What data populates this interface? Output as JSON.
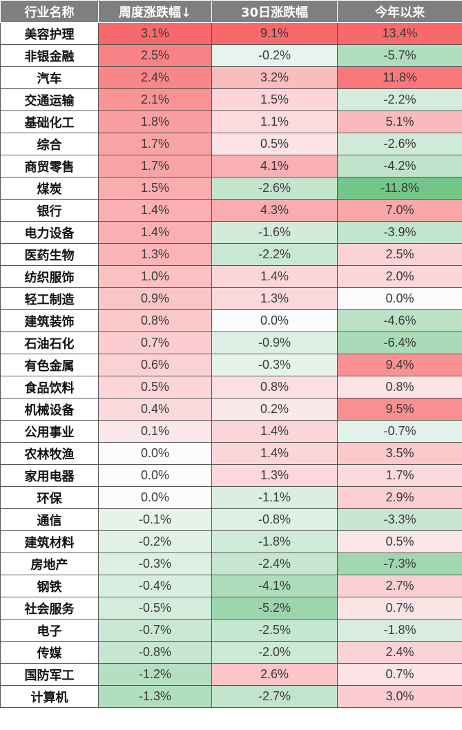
{
  "chart_data": {
    "type": "table",
    "columns": [
      "行业名称",
      "周度涨跌幅↓",
      "30日涨跌幅",
      "今年以来"
    ],
    "rows": [
      {
        "name": "美容护理",
        "week": "3.1%",
        "d30": "9.1%",
        "ytd": "13.4%"
      },
      {
        "name": "非银金融",
        "week": "2.5%",
        "d30": "-0.2%",
        "ytd": "-5.7%"
      },
      {
        "name": "汽车",
        "week": "2.4%",
        "d30": "3.2%",
        "ytd": "11.8%"
      },
      {
        "name": "交通运输",
        "week": "2.1%",
        "d30": "1.5%",
        "ytd": "-2.2%"
      },
      {
        "name": "基础化工",
        "week": "1.8%",
        "d30": "1.1%",
        "ytd": "5.1%"
      },
      {
        "name": "综合",
        "week": "1.7%",
        "d30": "0.5%",
        "ytd": "-2.6%"
      },
      {
        "name": "商贸零售",
        "week": "1.7%",
        "d30": "4.1%",
        "ytd": "-4.2%"
      },
      {
        "name": "煤炭",
        "week": "1.5%",
        "d30": "-2.6%",
        "ytd": "-11.8%"
      },
      {
        "name": "银行",
        "week": "1.4%",
        "d30": "4.3%",
        "ytd": "7.0%"
      },
      {
        "name": "电力设备",
        "week": "1.4%",
        "d30": "-1.6%",
        "ytd": "-3.9%"
      },
      {
        "name": "医药生物",
        "week": "1.3%",
        "d30": "-2.2%",
        "ytd": "2.5%"
      },
      {
        "name": "纺织服饰",
        "week": "1.0%",
        "d30": "1.4%",
        "ytd": "2.0%"
      },
      {
        "name": "轻工制造",
        "week": "0.9%",
        "d30": "1.3%",
        "ytd": "0.0%"
      },
      {
        "name": "建筑装饰",
        "week": "0.8%",
        "d30": "0.0%",
        "ytd": "-4.6%"
      },
      {
        "name": "石油石化",
        "week": "0.7%",
        "d30": "-0.9%",
        "ytd": "-6.4%"
      },
      {
        "name": "有色金属",
        "week": "0.6%",
        "d30": "-0.3%",
        "ytd": "9.4%"
      },
      {
        "name": "食品饮料",
        "week": "0.5%",
        "d30": "0.8%",
        "ytd": "0.8%"
      },
      {
        "name": "机械设备",
        "week": "0.4%",
        "d30": "0.2%",
        "ytd": "9.5%"
      },
      {
        "name": "公用事业",
        "week": "0.1%",
        "d30": "1.4%",
        "ytd": "-0.7%"
      },
      {
        "name": "农林牧渔",
        "week": "0.0%",
        "d30": "1.4%",
        "ytd": "3.5%"
      },
      {
        "name": "家用电器",
        "week": "0.0%",
        "d30": "1.3%",
        "ytd": "1.7%"
      },
      {
        "name": "环保",
        "week": "0.0%",
        "d30": "-1.1%",
        "ytd": "2.9%"
      },
      {
        "name": "通信",
        "week": "-0.1%",
        "d30": "-0.8%",
        "ytd": "-3.3%"
      },
      {
        "name": "建筑材料",
        "week": "-0.2%",
        "d30": "-1.8%",
        "ytd": "0.5%"
      },
      {
        "name": "房地产",
        "week": "-0.3%",
        "d30": "-2.4%",
        "ytd": "-7.3%"
      },
      {
        "name": "钢铁",
        "week": "-0.4%",
        "d30": "-4.1%",
        "ytd": "2.7%"
      },
      {
        "name": "社会服务",
        "week": "-0.5%",
        "d30": "-5.2%",
        "ytd": "0.7%"
      },
      {
        "name": "电子",
        "week": "-0.7%",
        "d30": "-2.5%",
        "ytd": "-1.8%"
      },
      {
        "name": "传媒",
        "week": "-0.8%",
        "d30": "-2.0%",
        "ytd": "2.4%"
      },
      {
        "name": "国防军工",
        "week": "-1.2%",
        "d30": "2.6%",
        "ytd": "0.7%"
      },
      {
        "name": "计算机",
        "week": "-1.3%",
        "d30": "-2.7%",
        "ytd": "3.0%"
      }
    ],
    "colors": {
      "positive": "#f8696b",
      "negative": "#63be7b",
      "neutral": "#fcfcff",
      "header_bg": "#7f7f7f"
    }
  }
}
